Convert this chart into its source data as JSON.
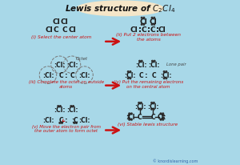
{
  "bg_color": "#a8d8e8",
  "title_bg": "#f5e6c8",
  "title_border": "#c8a870",
  "arrow_color": "#cc1111",
  "label_color": "#cc1111",
  "atom_color": "#1a1a1a",
  "dot_color": "#333333",
  "bond_color": "#222222",
  "watermark": "© knordislearning.com",
  "step_labels": [
    "(i) Select the center atom",
    "(ii) Put 2 electrons between\nthe atoms",
    "(iii) Complete the octet on outside\natoms",
    "(iv) Put the remaining electrons\non the central atom",
    "(v) Move the electron pair from\nthe outer atom to form octet",
    "(vi) Stable lewis structure"
  ],
  "octet_label": "Octet",
  "lone_pair_label": "Lone pair"
}
